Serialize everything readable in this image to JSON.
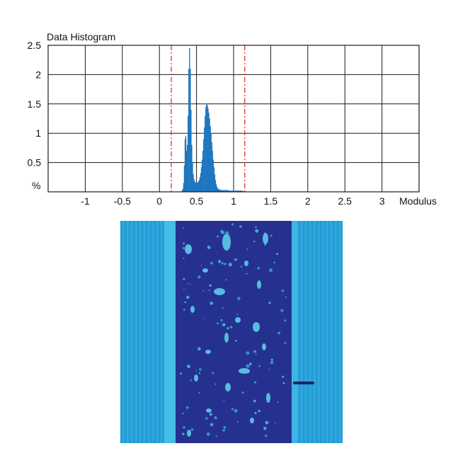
{
  "chart_data": {
    "type": "bar",
    "title": "Data Histogram",
    "xlabel": "Modulus",
    "ylabel": "%",
    "xlim": [
      -1.5,
      3.5
    ],
    "ylim": [
      0,
      2.5
    ],
    "x_ticks": [
      "-1",
      "-0.5",
      "0",
      "0.5",
      "1",
      "1.5",
      "2",
      "2.5",
      "3"
    ],
    "y_ticks": [
      "0.5",
      "1",
      "1.5",
      "2",
      "2.5"
    ],
    "grid": true,
    "bar_color": "#1f77c0",
    "marker_color": "#e0211f",
    "markers_x": [
      0.16,
      1.15
    ],
    "series": [
      {
        "x": [
          0.3,
          0.31,
          0.32,
          0.33,
          0.34,
          0.35,
          0.36,
          0.37,
          0.38,
          0.39,
          0.4,
          0.41,
          0.42,
          0.43,
          0.44,
          0.45,
          0.46,
          0.47,
          0.48,
          0.49,
          0.5,
          0.51,
          0.52,
          0.53,
          0.54,
          0.55,
          0.56,
          0.57,
          0.58,
          0.59,
          0.6,
          0.61,
          0.62,
          0.63,
          0.64,
          0.65,
          0.66,
          0.67,
          0.68,
          0.69,
          0.7,
          0.71,
          0.72,
          0.73,
          0.74,
          0.75,
          0.76,
          0.77,
          0.78,
          0.79,
          0.8,
          0.81,
          0.82,
          0.83,
          0.84,
          0.85,
          0.86,
          0.87,
          0.88,
          0.89,
          0.9,
          0.91,
          0.92,
          0.93,
          0.94,
          0.95,
          0.96,
          0.97,
          0.98,
          0.99,
          1.0,
          1.02,
          1.04,
          1.06,
          1.08,
          1.1,
          1.12
        ],
        "values": [
          0.02,
          0.05,
          0.15,
          0.45,
          0.9,
          0.95,
          0.7,
          0.8,
          1.3,
          2.1,
          2.45,
          2.1,
          1.4,
          0.8,
          0.5,
          0.3,
          0.22,
          0.18,
          0.16,
          0.15,
          0.15,
          0.16,
          0.18,
          0.2,
          0.25,
          0.32,
          0.42,
          0.55,
          0.7,
          0.9,
          1.1,
          1.3,
          1.45,
          1.5,
          1.48,
          1.42,
          1.35,
          1.25,
          1.12,
          1.0,
          0.85,
          0.7,
          0.55,
          0.42,
          0.3,
          0.2,
          0.13,
          0.09,
          0.06,
          0.05,
          0.04,
          0.04,
          0.03,
          0.03,
          0.03,
          0.03,
          0.03,
          0.03,
          0.03,
          0.03,
          0.03,
          0.03,
          0.03,
          0.02,
          0.02,
          0.02,
          0.02,
          0.02,
          0.02,
          0.02,
          0.02,
          0.02,
          0.02,
          0.02,
          0.02,
          0.02,
          0.01
        ]
      }
    ]
  },
  "colors": {
    "map_background": "#29a0d8",
    "map_band": "#232e8f",
    "map_edge": "#48c0e8",
    "map_particle": "#5fd4f0"
  }
}
